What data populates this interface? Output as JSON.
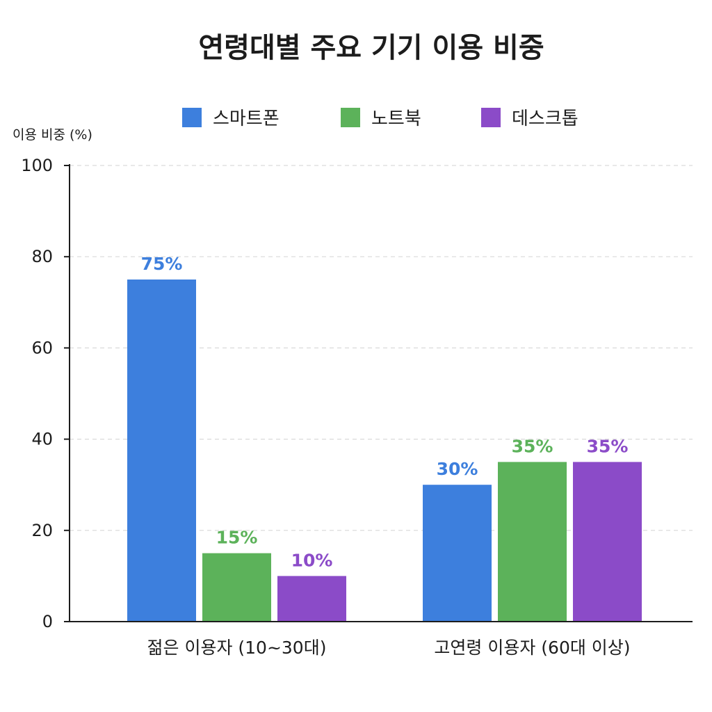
{
  "chart_data": {
    "type": "bar",
    "title": "연령대별 주요 기기 이용 비중",
    "ylabel": "이용 비중 (%)",
    "xlabel": "",
    "ylim": [
      0,
      100
    ],
    "yticks": [
      "0",
      "20",
      "40",
      "60",
      "80",
      "100"
    ],
    "grid": true,
    "legend_position": "top",
    "categories": [
      "젊은 이용자 (10~30대)",
      "고연령 이용자 (60대 이상)"
    ],
    "series": [
      {
        "name": "스마트폰",
        "color": "#3d7fdd",
        "values": [
          75,
          30
        ],
        "labels": [
          "75%",
          "30%"
        ]
      },
      {
        "name": "노트북",
        "color": "#5cb25a",
        "values": [
          15,
          35
        ],
        "labels": [
          "15%",
          "35%"
        ]
      },
      {
        "name": "데스크톱",
        "color": "#8b4bc8",
        "values": [
          10,
          35
        ],
        "labels": [
          "10%",
          "35%"
        ]
      }
    ]
  }
}
